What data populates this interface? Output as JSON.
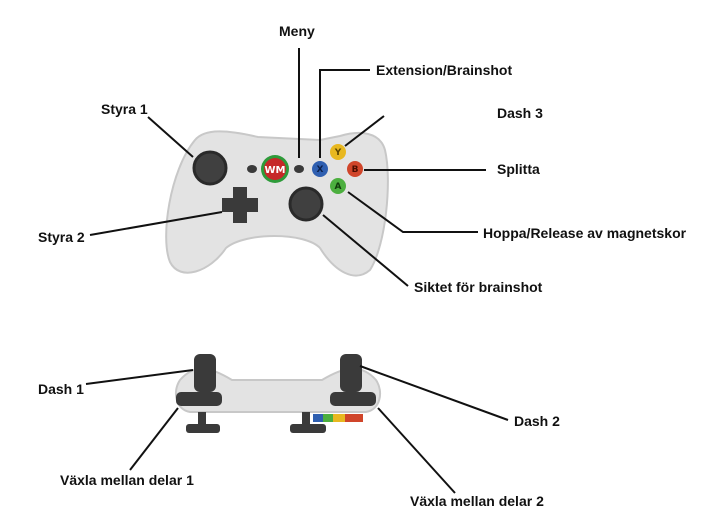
{
  "labels": {
    "menu": "Meny",
    "extension": "Extension/Brainshot",
    "dash3": "Dash 3",
    "split": "Splitta",
    "jump": "Hoppa/Release av magnetskor",
    "aim": "Siktet för brainshot",
    "steer1": "Styra 1",
    "steer2": "Styra 2",
    "dash1": "Dash 1",
    "dash2": "Dash 2",
    "switch1": "Växla mellan delar 1",
    "switch2": "Växla mellan delar 2"
  },
  "logo": {
    "text": "WM"
  },
  "face_buttons": {
    "x": {
      "letter": "X",
      "color": "#2f5fb0"
    },
    "y": {
      "letter": "Y",
      "color": "#e8b820"
    },
    "b": {
      "letter": "B",
      "color": "#d0452a"
    },
    "a": {
      "letter": "A",
      "color": "#4caf3f"
    }
  },
  "colors": {
    "logo_red": "#c62828",
    "logo_ring": "#2e9b3a",
    "body": "#e3e3e3"
  }
}
